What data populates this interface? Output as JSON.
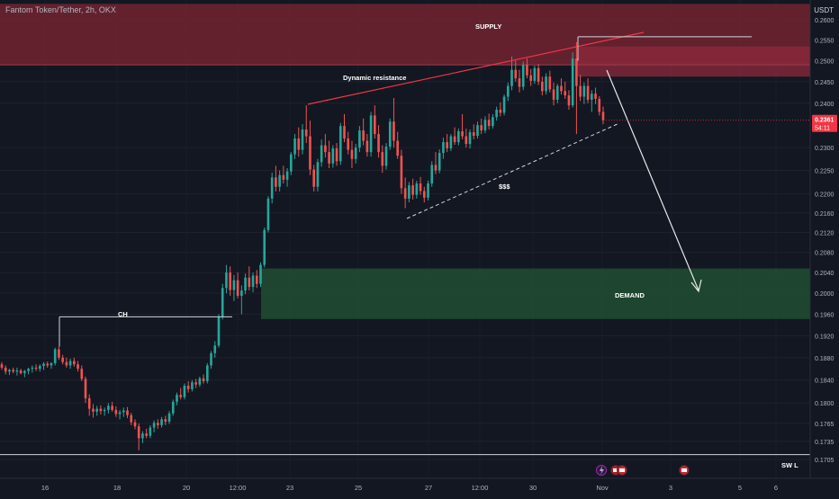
{
  "header": {
    "symbol": "Fantom Token/Tether, 2h, OKX",
    "currency": "USDT"
  },
  "colors": {
    "background": "#131722",
    "up": "#26a69a",
    "down": "#ef5350",
    "supply_zone": "#6d2230",
    "demand_zone": "#1f4a32",
    "price_badge": "#f23645",
    "axis_text": "#b2b5be"
  },
  "chart_data": {
    "type": "candlestick",
    "y_axis": {
      "ticks": [
        "0.2600",
        "0.2550",
        "0.2500",
        "0.2450",
        "0.2400",
        "0.2300",
        "0.2250",
        "0.2200",
        "0.2160",
        "0.2120",
        "0.2080",
        "0.2040",
        "0.2000",
        "0.1960",
        "0.1920",
        "0.1880",
        "0.1840",
        "0.1800",
        "0.1765",
        "0.1735",
        "0.1705"
      ],
      "scale": "log"
    },
    "x_axis": {
      "ticks": [
        "16",
        "18",
        "20",
        "12:00",
        "23",
        "25",
        "27",
        "12:00",
        "30",
        "Nov",
        "3",
        "5",
        "6"
      ]
    },
    "last_price": {
      "value": "0.2361",
      "countdown": "54:11"
    },
    "zones": [
      {
        "label": "SUPPLY",
        "price_from": 0.249,
        "price_to": 0.264
      },
      {
        "label": "",
        "price_from": 0.2462,
        "price_to": 0.2534
      },
      {
        "label": "DEMAND",
        "price_from": 0.1951,
        "price_to": 0.2048
      }
    ],
    "annotations": {
      "dynamic_resistance": "Dynamic resistance",
      "liquidity": "$$$",
      "change_of_character": "CH",
      "swing_low": "SW L",
      "supply": "SUPPLY",
      "demand": "DEMAND"
    },
    "levels": {
      "ch_level": 0.1955,
      "swing_low_level": 0.1713,
      "top_level": 0.2558
    },
    "candles": [
      [
        0.1868,
        0.1872,
        0.1858,
        0.1862
      ],
      [
        0.1862,
        0.1866,
        0.185,
        0.1855
      ],
      [
        0.1855,
        0.186,
        0.1849,
        0.1858
      ],
      [
        0.1858,
        0.1862,
        0.1852,
        0.1855
      ],
      [
        0.1855,
        0.1862,
        0.1848,
        0.1857
      ],
      [
        0.1857,
        0.186,
        0.185,
        0.1852
      ],
      [
        0.1852,
        0.1858,
        0.1845,
        0.1856
      ],
      [
        0.1856,
        0.1862,
        0.185,
        0.186
      ],
      [
        0.186,
        0.1866,
        0.1853,
        0.1862
      ],
      [
        0.1862,
        0.1868,
        0.1856,
        0.186
      ],
      [
        0.186,
        0.1868,
        0.1855,
        0.1865
      ],
      [
        0.1865,
        0.1872,
        0.1858,
        0.1869
      ],
      [
        0.1869,
        0.1873,
        0.1862,
        0.1866
      ],
      [
        0.1866,
        0.1872,
        0.186,
        0.187
      ],
      [
        0.187,
        0.1898,
        0.1866,
        0.1895
      ],
      [
        0.1895,
        0.19,
        0.1876,
        0.188
      ],
      [
        0.188,
        0.1885,
        0.1868,
        0.1872
      ],
      [
        0.1872,
        0.188,
        0.1862,
        0.1866
      ],
      [
        0.1866,
        0.1878,
        0.186,
        0.1874
      ],
      [
        0.1874,
        0.188,
        0.1864,
        0.1868
      ],
      [
        0.1868,
        0.1874,
        0.1855,
        0.186
      ],
      [
        0.186,
        0.1866,
        0.1838,
        0.1842
      ],
      [
        0.1842,
        0.1846,
        0.18,
        0.1808
      ],
      [
        0.1808,
        0.1815,
        0.1778,
        0.179
      ],
      [
        0.179,
        0.1798,
        0.1775,
        0.1785
      ],
      [
        0.1785,
        0.1795,
        0.1778,
        0.179
      ],
      [
        0.179,
        0.1796,
        0.178,
        0.1786
      ],
      [
        0.1786,
        0.1792,
        0.1778,
        0.1788
      ],
      [
        0.1788,
        0.18,
        0.1782,
        0.1795
      ],
      [
        0.1795,
        0.1802,
        0.1785,
        0.1788
      ],
      [
        0.1788,
        0.1794,
        0.1776,
        0.1781
      ],
      [
        0.1781,
        0.1788,
        0.1772,
        0.1784
      ],
      [
        0.1784,
        0.1792,
        0.1776,
        0.1787
      ],
      [
        0.1787,
        0.1793,
        0.1774,
        0.1779
      ],
      [
        0.1779,
        0.1783,
        0.1762,
        0.1767
      ],
      [
        0.1767,
        0.1772,
        0.1755,
        0.176
      ],
      [
        0.176,
        0.1765,
        0.172,
        0.174
      ],
      [
        0.174,
        0.1752,
        0.1732,
        0.1748
      ],
      [
        0.1748,
        0.1756,
        0.174,
        0.1744
      ],
      [
        0.1744,
        0.1762,
        0.174,
        0.1758
      ],
      [
        0.1758,
        0.177,
        0.175,
        0.1766
      ],
      [
        0.1766,
        0.1772,
        0.1756,
        0.1762
      ],
      [
        0.1762,
        0.1776,
        0.1758,
        0.1772
      ],
      [
        0.1772,
        0.1778,
        0.1762,
        0.1768
      ],
      [
        0.1768,
        0.1786,
        0.1764,
        0.1782
      ],
      [
        0.1782,
        0.1806,
        0.1778,
        0.1802
      ],
      [
        0.1802,
        0.1818,
        0.1796,
        0.1814
      ],
      [
        0.1814,
        0.1826,
        0.1806,
        0.181
      ],
      [
        0.181,
        0.1834,
        0.1806,
        0.183
      ],
      [
        0.183,
        0.1838,
        0.1818,
        0.1824
      ],
      [
        0.1824,
        0.184,
        0.182,
        0.1836
      ],
      [
        0.1836,
        0.1842,
        0.1826,
        0.1832
      ],
      [
        0.1832,
        0.1846,
        0.1828,
        0.1843
      ],
      [
        0.1843,
        0.185,
        0.1834,
        0.1838
      ],
      [
        0.1838,
        0.187,
        0.1834,
        0.1866
      ],
      [
        0.1866,
        0.1892,
        0.186,
        0.1888
      ],
      [
        0.1888,
        0.191,
        0.188,
        0.1902
      ],
      [
        0.1902,
        0.196,
        0.1898,
        0.1955
      ],
      [
        0.1955,
        0.2018,
        0.195,
        0.201
      ],
      [
        0.201,
        0.2055,
        0.2,
        0.204
      ],
      [
        0.204,
        0.2052,
        0.1995,
        0.2006
      ],
      [
        0.2006,
        0.2035,
        0.1985,
        0.2025
      ],
      [
        0.2025,
        0.204,
        0.199,
        0.1995
      ],
      [
        0.1995,
        0.2015,
        0.196,
        0.2005
      ],
      [
        0.2005,
        0.2038,
        0.1998,
        0.203
      ],
      [
        0.203,
        0.2052,
        0.2005,
        0.2012
      ],
      [
        0.2012,
        0.204,
        0.2002,
        0.2034
      ],
      [
        0.2034,
        0.2045,
        0.201,
        0.2018
      ],
      [
        0.2018,
        0.206,
        0.2012,
        0.2055
      ],
      [
        0.2055,
        0.213,
        0.205,
        0.2125
      ],
      [
        0.2125,
        0.2195,
        0.212,
        0.219
      ],
      [
        0.219,
        0.2245,
        0.218,
        0.2235
      ],
      [
        0.2235,
        0.226,
        0.2205,
        0.2215
      ],
      [
        0.2215,
        0.225,
        0.2205,
        0.224
      ],
      [
        0.224,
        0.226,
        0.2222,
        0.223
      ],
      [
        0.223,
        0.2255,
        0.2215,
        0.2248
      ],
      [
        0.2248,
        0.229,
        0.224,
        0.2285
      ],
      [
        0.2285,
        0.233,
        0.2275,
        0.232
      ],
      [
        0.232,
        0.2345,
        0.228,
        0.2295
      ],
      [
        0.2295,
        0.2352,
        0.2285,
        0.234
      ],
      [
        0.234,
        0.2395,
        0.231,
        0.2325
      ],
      [
        0.2325,
        0.236,
        0.224,
        0.2252
      ],
      [
        0.2252,
        0.2262,
        0.2205,
        0.2215
      ],
      [
        0.2215,
        0.2275,
        0.2205,
        0.2268
      ],
      [
        0.2268,
        0.2318,
        0.2258,
        0.2305
      ],
      [
        0.2305,
        0.233,
        0.2278,
        0.229
      ],
      [
        0.229,
        0.2315,
        0.2255,
        0.2265
      ],
      [
        0.2265,
        0.2305,
        0.2256,
        0.2298
      ],
      [
        0.2298,
        0.231,
        0.226,
        0.227
      ],
      [
        0.227,
        0.2355,
        0.2262,
        0.2348
      ],
      [
        0.2348,
        0.2375,
        0.2312,
        0.232
      ],
      [
        0.232,
        0.2335,
        0.2285,
        0.2295
      ],
      [
        0.2295,
        0.2315,
        0.2255,
        0.2275
      ],
      [
        0.2275,
        0.2308,
        0.2265,
        0.23
      ],
      [
        0.23,
        0.2348,
        0.229,
        0.2338
      ],
      [
        0.2338,
        0.2365,
        0.2305,
        0.2315
      ],
      [
        0.2315,
        0.233,
        0.228,
        0.229
      ],
      [
        0.229,
        0.238,
        0.228,
        0.2372
      ],
      [
        0.2372,
        0.2395,
        0.232,
        0.233
      ],
      [
        0.233,
        0.235,
        0.2278,
        0.229
      ],
      [
        0.229,
        0.2305,
        0.2245,
        0.226
      ],
      [
        0.226,
        0.231,
        0.2252,
        0.2302
      ],
      [
        0.2302,
        0.2365,
        0.2295,
        0.2358
      ],
      [
        0.2358,
        0.2412,
        0.23,
        0.2315
      ],
      [
        0.2315,
        0.2335,
        0.2275,
        0.2282
      ],
      [
        0.2282,
        0.2295,
        0.22,
        0.2212
      ],
      [
        0.2212,
        0.2235,
        0.217,
        0.219
      ],
      [
        0.219,
        0.2225,
        0.2182,
        0.2218
      ],
      [
        0.2218,
        0.2232,
        0.2188,
        0.2198
      ],
      [
        0.2198,
        0.2228,
        0.219,
        0.2222
      ],
      [
        0.2222,
        0.2236,
        0.2198,
        0.2206
      ],
      [
        0.2206,
        0.2215,
        0.2182,
        0.2192
      ],
      [
        0.2192,
        0.2228,
        0.2186,
        0.2222
      ],
      [
        0.2222,
        0.227,
        0.2215,
        0.2262
      ],
      [
        0.2262,
        0.229,
        0.2242,
        0.225
      ],
      [
        0.225,
        0.2296,
        0.2244,
        0.2288
      ],
      [
        0.2288,
        0.2322,
        0.2275,
        0.2312
      ],
      [
        0.2312,
        0.233,
        0.229,
        0.2298
      ],
      [
        0.2298,
        0.233,
        0.2292,
        0.2325
      ],
      [
        0.2325,
        0.2345,
        0.2306,
        0.2312
      ],
      [
        0.2312,
        0.2342,
        0.2305,
        0.2336
      ],
      [
        0.2336,
        0.2375,
        0.2318,
        0.2325
      ],
      [
        0.2325,
        0.2342,
        0.23,
        0.2308
      ],
      [
        0.2308,
        0.234,
        0.2298,
        0.2334
      ],
      [
        0.2334,
        0.2352,
        0.2318,
        0.2326
      ],
      [
        0.2326,
        0.2358,
        0.232,
        0.235
      ],
      [
        0.235,
        0.2365,
        0.233,
        0.2338
      ],
      [
        0.2338,
        0.237,
        0.2332,
        0.2362
      ],
      [
        0.2362,
        0.2376,
        0.234,
        0.2348
      ],
      [
        0.2348,
        0.2375,
        0.2342,
        0.2368
      ],
      [
        0.2368,
        0.2392,
        0.236,
        0.2385
      ],
      [
        0.2385,
        0.2402,
        0.237,
        0.2378
      ],
      [
        0.2378,
        0.242,
        0.2372,
        0.2415
      ],
      [
        0.2415,
        0.2448,
        0.2405,
        0.244
      ],
      [
        0.244,
        0.251,
        0.243,
        0.2478
      ],
      [
        0.2478,
        0.25,
        0.245,
        0.2458
      ],
      [
        0.2458,
        0.2478,
        0.2425,
        0.2438
      ],
      [
        0.2438,
        0.2498,
        0.243,
        0.249
      ],
      [
        0.249,
        0.2505,
        0.2458,
        0.2465
      ],
      [
        0.2465,
        0.248,
        0.244,
        0.2452
      ],
      [
        0.2452,
        0.2488,
        0.2445,
        0.2482
      ],
      [
        0.2482,
        0.2492,
        0.2442,
        0.245
      ],
      [
        0.245,
        0.2462,
        0.2418,
        0.2428
      ],
      [
        0.2428,
        0.247,
        0.242,
        0.2462
      ],
      [
        0.2462,
        0.2476,
        0.2425,
        0.2432
      ],
      [
        0.2432,
        0.2448,
        0.2395,
        0.2408
      ],
      [
        0.2408,
        0.2445,
        0.24,
        0.244
      ],
      [
        0.244,
        0.2458,
        0.242,
        0.2428
      ],
      [
        0.2428,
        0.245,
        0.241,
        0.2418
      ],
      [
        0.2418,
        0.243,
        0.2385,
        0.2395
      ],
      [
        0.2395,
        0.252,
        0.239,
        0.2505
      ],
      [
        0.2505,
        0.2545,
        0.233,
        0.244
      ],
      [
        0.244,
        0.2466,
        0.2405,
        0.2415
      ],
      [
        0.2415,
        0.2448,
        0.2398,
        0.244
      ],
      [
        0.244,
        0.2458,
        0.24,
        0.2408
      ],
      [
        0.2408,
        0.243,
        0.238,
        0.2422
      ],
      [
        0.2422,
        0.2436,
        0.2398,
        0.241
      ],
      [
        0.241,
        0.2416,
        0.2372,
        0.238
      ],
      [
        0.238,
        0.2392,
        0.2352,
        0.2361
      ]
    ]
  }
}
